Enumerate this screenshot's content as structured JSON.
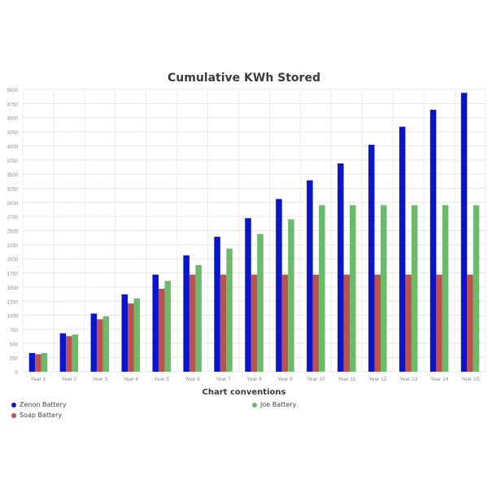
{
  "chart_data": {
    "type": "bar",
    "title": "Cumulative KWh Stored",
    "xlabel": "",
    "ylabel": "",
    "ylim": [
      0,
      5000
    ],
    "y_ticks": [
      0,
      250,
      500,
      750,
      1000,
      1250,
      1500,
      1750,
      2000,
      2250,
      2500,
      2750,
      3000,
      3250,
      3500,
      3750,
      4000,
      4250,
      4500,
      4750,
      5000
    ],
    "grid": true,
    "legend_title": "Chart conventions",
    "legend_position": "bottom",
    "categories": [
      "Year 1",
      "Year 2",
      "Year 3",
      "Year 4",
      "Year 5",
      "Year 6",
      "Year 7",
      "Year 8",
      "Year 9",
      "Year 10",
      "Year 11",
      "Year 12",
      "Year 13",
      "Year 14",
      "Year 15"
    ],
    "series": [
      {
        "name": "Zenon Battery",
        "color": "#0a14c8",
        "values": [
          330,
          680,
          1030,
          1370,
          1720,
          2060,
          2390,
          2720,
          3060,
          3390,
          3690,
          4020,
          4340,
          4640,
          4940
        ]
      },
      {
        "name": "Soap Battery",
        "color": "#c0504d",
        "values": [
          310,
          630,
          930,
          1210,
          1470,
          1720,
          1720,
          1720,
          1720,
          1720,
          1720,
          1720,
          1720,
          1720,
          1720
        ]
      },
      {
        "name": "Joe Battery",
        "color": "#6dbb6a",
        "values": [
          330,
          660,
          980,
          1300,
          1610,
          1890,
          2180,
          2440,
          2700,
          2950,
          2950,
          2950,
          2950,
          2950,
          2950
        ]
      }
    ]
  }
}
